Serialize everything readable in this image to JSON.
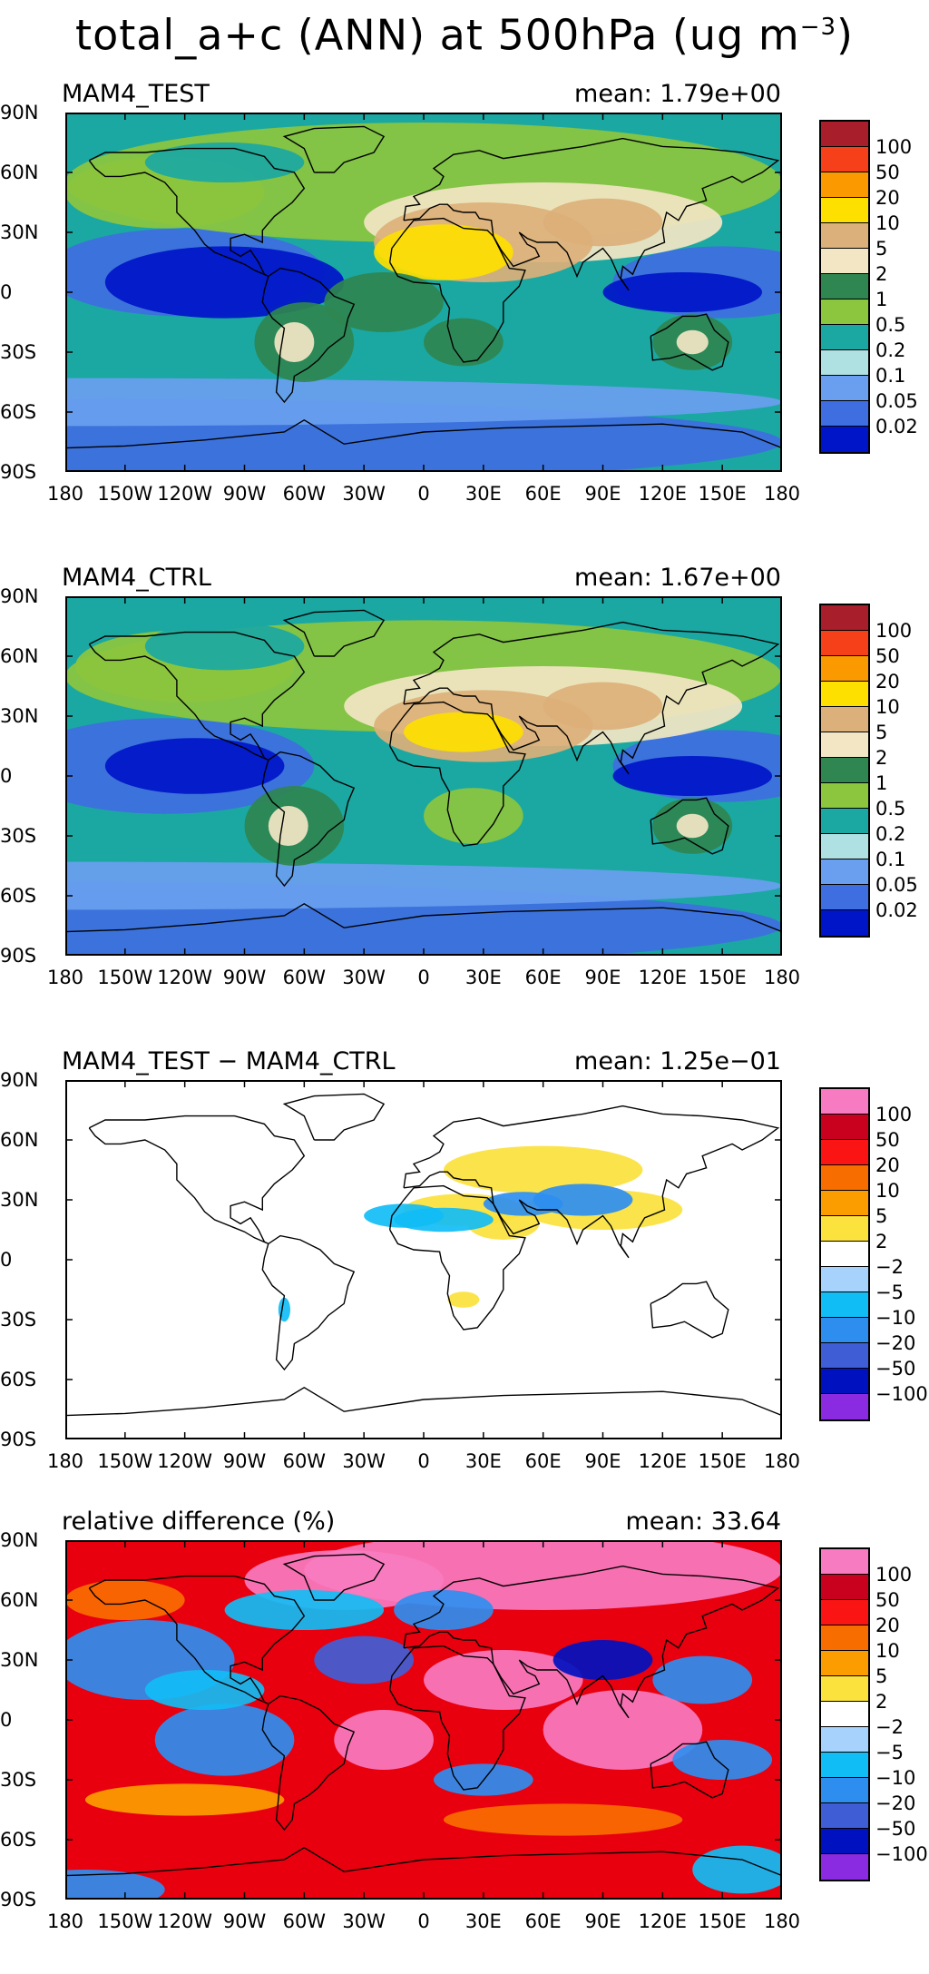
{
  "title": "total_a+c (ANN) at 500hPa (ug m",
  "title_exp": "−3",
  "title_close": ")",
  "lat_labels": [
    "90N",
    "60N",
    "30N",
    "0",
    "30S",
    "60S",
    "90S"
  ],
  "lon_labels": [
    "180",
    "150W",
    "120W",
    "90W",
    "60W",
    "30W",
    "0",
    "30E",
    "60E",
    "90E",
    "120E",
    "150E",
    "180"
  ],
  "panels": [
    {
      "name": "MAM4_TEST",
      "mean": "mean: 1.79e+00",
      "bg": "#1ba8a2",
      "levels": [
        "100",
        "50",
        "20",
        "10",
        "5",
        "2",
        "1",
        "0.5",
        "0.2",
        "0.1",
        "0.05",
        "0.02"
      ],
      "colors": [
        "#a81e2a",
        "#f5401a",
        "#fb9a00",
        "#fde000",
        "#dcb07a",
        "#f3e6c4",
        "#2f8650",
        "#8cc63e",
        "#1ba8a2",
        "#afe0e2",
        "#6a9ff0",
        "#3f6ee0",
        "#0015c8"
      ]
    },
    {
      "name": "MAM4_CTRL",
      "mean": "mean: 1.67e+00",
      "bg": "#1ba8a2",
      "levels": [
        "100",
        "50",
        "20",
        "10",
        "5",
        "2",
        "1",
        "0.5",
        "0.2",
        "0.1",
        "0.05",
        "0.02"
      ],
      "colors": [
        "#a81e2a",
        "#f5401a",
        "#fb9a00",
        "#fde000",
        "#dcb07a",
        "#f3e6c4",
        "#2f8650",
        "#8cc63e",
        "#1ba8a2",
        "#afe0e2",
        "#6a9ff0",
        "#3f6ee0",
        "#0015c8"
      ]
    },
    {
      "name": "MAM4_TEST − MAM4_CTRL",
      "mean": "mean: 1.25e−01",
      "bg": "#ffffff",
      "levels": [
        "100",
        "50",
        "20",
        "10",
        "5",
        "2",
        "−2",
        "−5",
        "−10",
        "−20",
        "−50",
        "−100"
      ],
      "colors": [
        "#f77bc0",
        "#c9001e",
        "#fa1414",
        "#f86d00",
        "#fb9d00",
        "#fbe23c",
        "#ffffff",
        "#a6d2fc",
        "#11bdf5",
        "#2e8ef0",
        "#3f5ed6",
        "#0011c0",
        "#8a2be2"
      ]
    },
    {
      "name": "relative difference (%)",
      "mean": "mean: 33.64",
      "bg": "#e8000f",
      "levels": [
        "100",
        "50",
        "20",
        "10",
        "5",
        "2",
        "−2",
        "−5",
        "−10",
        "−20",
        "−50",
        "−100"
      ],
      "colors": [
        "#f77bc0",
        "#c9001e",
        "#fa1414",
        "#f86d00",
        "#fb9d00",
        "#fbe23c",
        "#ffffff",
        "#a6d2fc",
        "#11bdf5",
        "#2e8ef0",
        "#3f5ed6",
        "#0011c0",
        "#8a2be2"
      ]
    }
  ]
}
